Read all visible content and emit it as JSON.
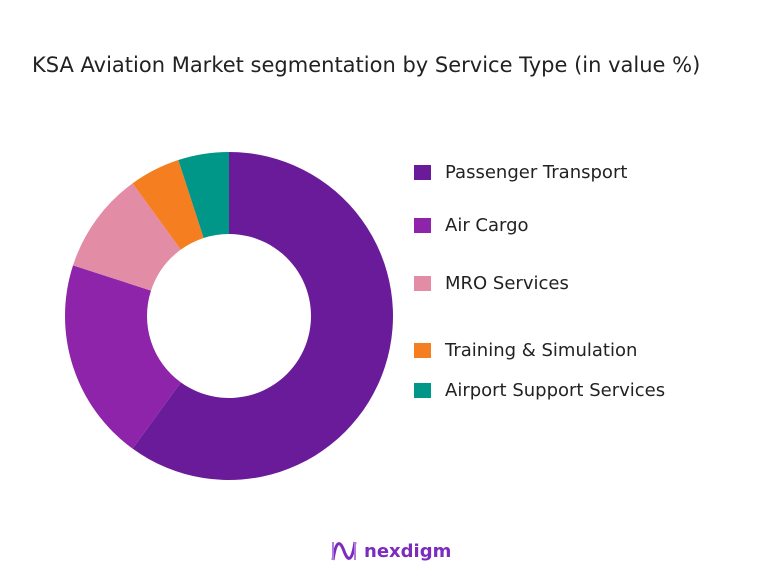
{
  "chart_data": {
    "type": "pie",
    "title": "KSA Aviation Market segmentation by Service Type (in value %)",
    "donut": true,
    "legend_position": "right",
    "categories": [
      "Passenger Transport",
      "Air Cargo",
      "MRO Services",
      "Training & Simulation",
      "Airport Support Services"
    ],
    "values": [
      60,
      20,
      10,
      5,
      5
    ],
    "colors": [
      "#6a1b9a",
      "#8e24aa",
      "#e28ca5",
      "#f57f20",
      "#009688"
    ]
  },
  "logo": {
    "text": "nexdigm"
  }
}
